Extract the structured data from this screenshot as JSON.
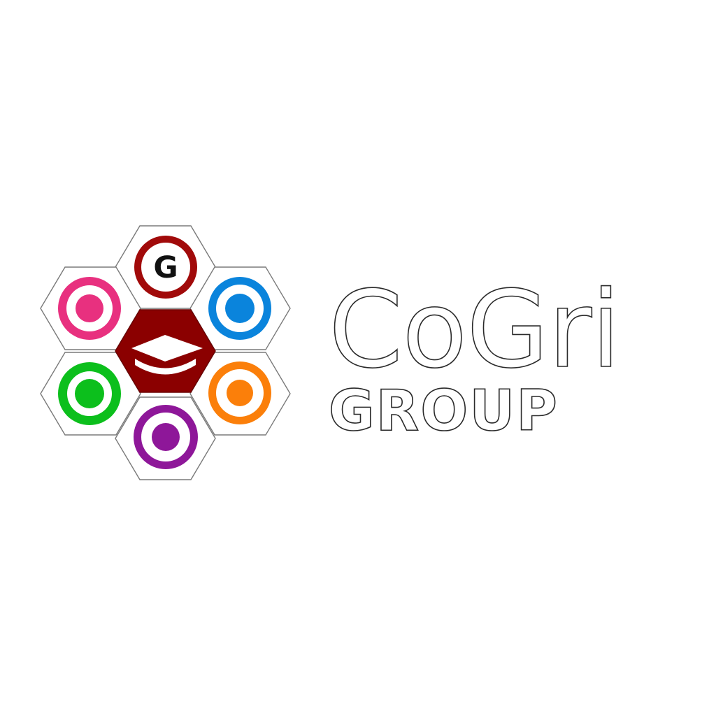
{
  "logo": {
    "brand_name": "CoGri",
    "brand_subtitle": "GROUP",
    "top_badge_letter": "G",
    "icons": {
      "center": "graduation-cap-icon",
      "top": "g-badge-icon",
      "upper_left": "pink-target-icon",
      "upper_right": "blue-target-icon",
      "lower_left": "green-target-icon",
      "lower_right": "orange-target-icon",
      "bottom": "purple-target-icon"
    },
    "colors": {
      "center_hex": "#8b0000",
      "top_ring": "#a10a0a",
      "upper_left": "#e8307f",
      "upper_right": "#0a84dc",
      "lower_left": "#0cbf1c",
      "lower_right": "#fb7f0a",
      "bottom": "#8e1799",
      "hex_outline": "#7a7a7a",
      "wordmark_outline": "#2a2a2a"
    }
  }
}
